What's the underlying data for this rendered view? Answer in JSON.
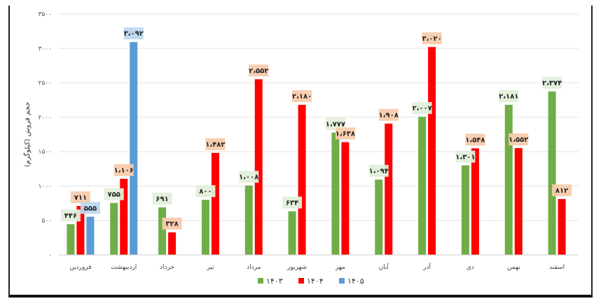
{
  "chart_data": {
    "type": "bar",
    "ylabel": "حجم فروش (کیلوگرم)",
    "ylim": [
      0,
      3500
    ],
    "y_ticks": [
      "۰",
      "۵۰۰",
      "۱۰۰۰",
      "۱۵۰۰",
      "۲۰۰۰",
      "۲۵۰۰",
      "۳۰۰۰",
      "۳۵۰۰"
    ],
    "grid": true,
    "legend_position": "bottom",
    "categories": [
      "فروردین",
      "اردیبهشت",
      "خرداد",
      "تیر",
      "مرداد",
      "شهریور",
      "مهر",
      "آبان",
      "آذر",
      "دی",
      "بهمن",
      "اسفند"
    ],
    "series": [
      {
        "name": "۱۴۰۳",
        "color": "#70ad47",
        "label_bg": "#e2efda",
        "values": [
          446,
          755,
          691,
          800,
          1008,
          634,
          1777,
          1094,
          2007,
          1301,
          2181,
          2374
        ],
        "labels": [
          "۴۴۶",
          "۷۵۵",
          "۶۹۱",
          "۸۰۰",
          "۱،۰۰۸",
          "۶۳۴",
          "۱،۷۷۷",
          "۱،۰۹۴",
          "۲،۰۰۷",
          "۱،۳۰۱",
          "۲،۱۸۱",
          "۲،۳۷۴"
        ]
      },
      {
        "name": "۱۴۰۴",
        "color": "#ff0000",
        "label_bg": "#f8cbad",
        "values": [
          711,
          1106,
          328,
          1482,
          2552,
          2180,
          1638,
          1908,
          3020,
          1548,
          1552,
          812
        ],
        "labels": [
          "۷۱۱",
          "۱،۱۰۶",
          "۳۲۸",
          "۱،۴۸۲",
          "۲،۵۵۲",
          "۲،۱۸۰",
          "۱،۶۳۸",
          "۱،۹۰۸",
          "۳،۰۲۰",
          "۱،۵۴۸",
          "۱،۵۵۲",
          "۸۱۲"
        ]
      },
      {
        "name": "۱۴۰۵",
        "color": "#5b9bd5",
        "label_bg": "#bdd7ee",
        "values": [
          555,
          3092,
          null,
          null,
          null,
          null,
          null,
          null,
          null,
          null,
          null,
          null
        ],
        "labels": [
          "۵۵۵",
          "۳،۰۹۲",
          null,
          null,
          null,
          null,
          null,
          null,
          null,
          null,
          null,
          null
        ]
      }
    ]
  }
}
